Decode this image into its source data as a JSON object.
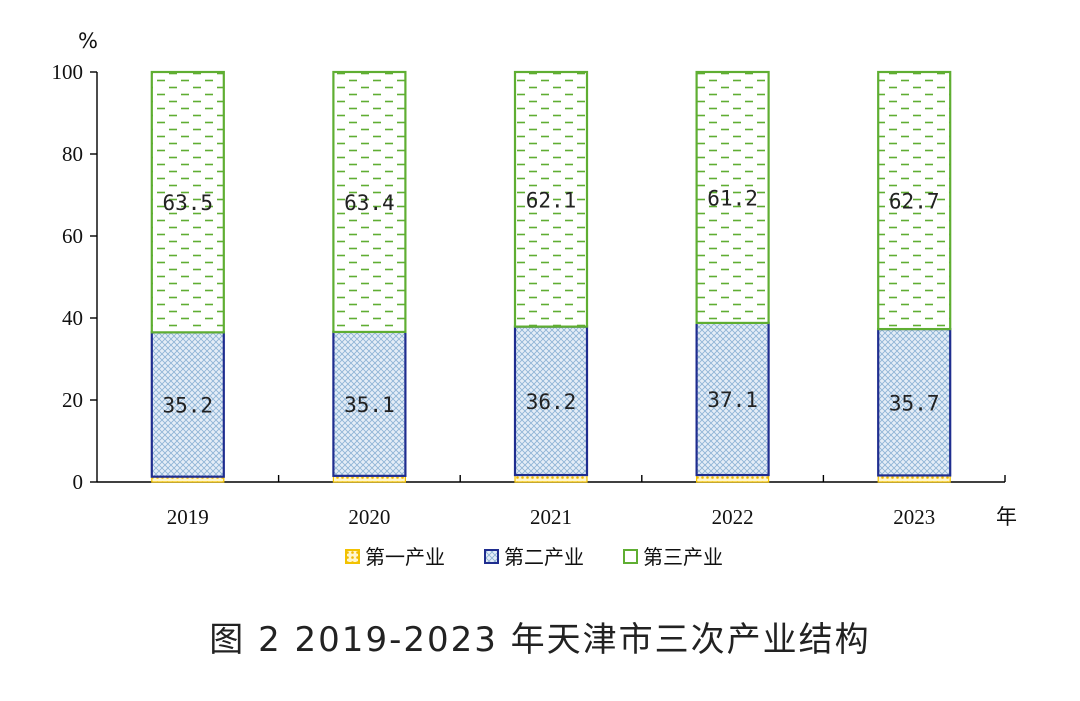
{
  "chart_data": {
    "type": "bar",
    "stacked": true,
    "categories": [
      "2019",
      "2020",
      "2021",
      "2022",
      "2023"
    ],
    "series": [
      {
        "name": "第一产业",
        "values": [
          1.3,
          1.5,
          1.7,
          1.7,
          1.6
        ],
        "color": "#f2c200",
        "pattern": "dots"
      },
      {
        "name": "第二产业",
        "values": [
          35.2,
          35.1,
          36.2,
          37.1,
          35.7
        ],
        "color": "#1f2d8f",
        "fill": "#dbe7f3",
        "pattern": "crosshatch"
      },
      {
        "name": "第三产业",
        "values": [
          63.5,
          63.4,
          62.1,
          61.2,
          62.7
        ],
        "color": "#5fae32",
        "pattern": "dashes"
      }
    ],
    "data_labels": {
      "第二产业": [
        "35.2",
        "35.1",
        "36.2",
        "37.1",
        "35.7"
      ],
      "第三产业": [
        "63.5",
        "63.4",
        "62.1",
        "61.2",
        "62.7"
      ]
    },
    "ylim": [
      0,
      100
    ],
    "yticks": [
      "0",
      "20",
      "40",
      "60",
      "80",
      "100"
    ],
    "y_unit": "%",
    "x_unit": "年",
    "legend_position": "bottom",
    "grid": false
  },
  "caption": "图 2 2019-2023 年天津市三次产业结构"
}
